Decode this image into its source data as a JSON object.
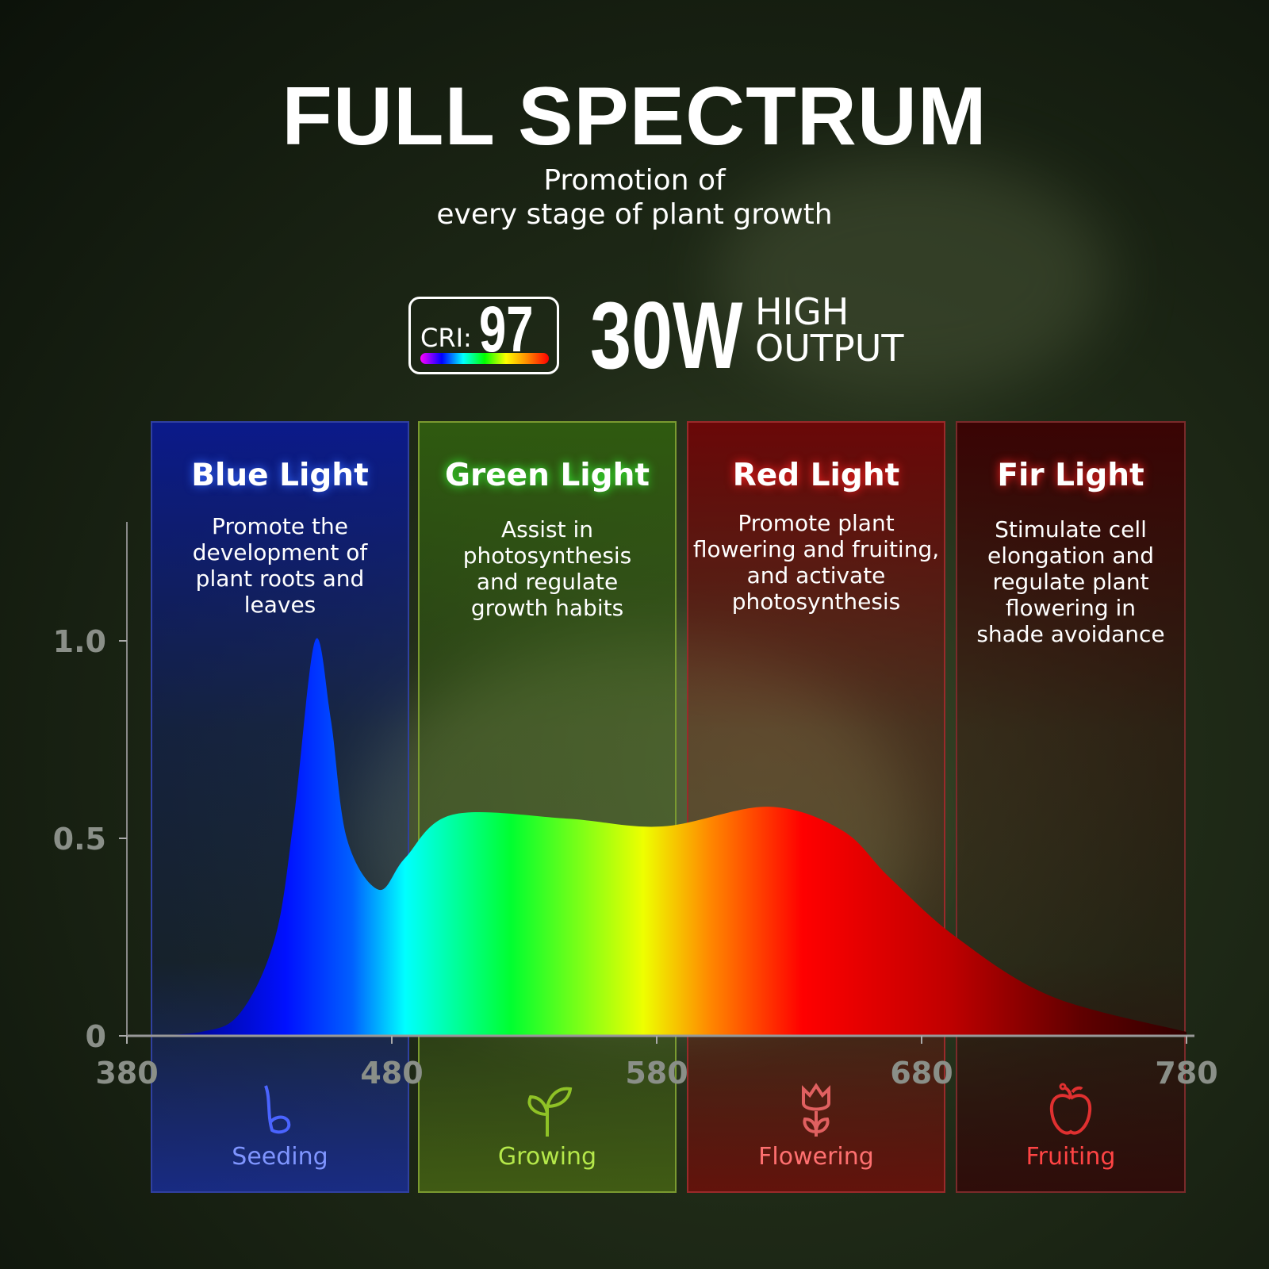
{
  "header": {
    "title": "FULL SPECTRUM",
    "subtitle_line1": "Promotion of",
    "subtitle_line2": "every stage of plant growth"
  },
  "badges": {
    "cri_label": "CRI:",
    "cri_value": "97",
    "wattage": "30W",
    "output_line1": "HIGH",
    "output_line2": "OUTPUT"
  },
  "panels": [
    {
      "title": "Blue Light",
      "desc": "Promote the development of plant roots and leaves",
      "stage": "Seeding",
      "icon": "sprout-seed-icon",
      "color": "#3355ff"
    },
    {
      "title": "Green Light",
      "desc": "Assist in photosynthesis and regulate growth habits",
      "stage": "Growing",
      "icon": "seedling-icon",
      "color": "#9fd92e"
    },
    {
      "title": "Red Light",
      "desc": "Promote plant flowering and fruiting, and activate photosynthesis",
      "stage": "Flowering",
      "icon": "tulip-icon",
      "color": "#ff5050"
    },
    {
      "title": "Fir Light",
      "desc": "Stimulate cell elongation and regulate plant flowering in shade avoidance",
      "stage": "Fruiting",
      "icon": "apple-icon",
      "color": "#ee3333"
    }
  ],
  "chart_data": {
    "type": "area",
    "xlim": [
      380,
      780
    ],
    "ylim": [
      0,
      1
    ],
    "xticks": [
      "380",
      "480",
      "580",
      "680",
      "780"
    ],
    "yticks": [
      "0",
      "0.5",
      "1.0"
    ],
    "x": [
      380,
      408,
      423,
      436,
      443,
      451,
      457,
      463,
      475,
      485,
      503,
      546,
      582,
      622,
      650,
      668,
      693,
      729,
      780
    ],
    "y": [
      0,
      0.01,
      0.06,
      0.25,
      0.55,
      1.0,
      0.8,
      0.5,
      0.37,
      0.45,
      0.56,
      0.55,
      0.53,
      0.58,
      0.52,
      0.4,
      0.25,
      0.1,
      0.01
    ],
    "fill": "wavelength-colored spectrum gradient",
    "grid": false
  }
}
